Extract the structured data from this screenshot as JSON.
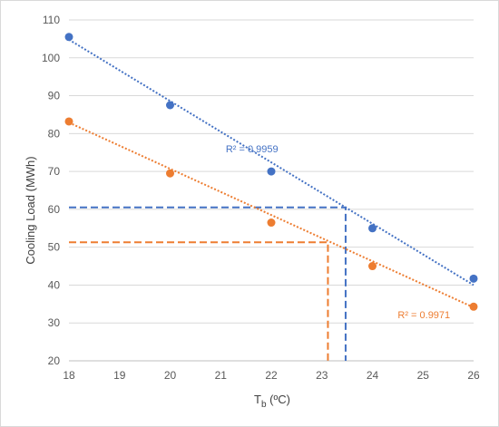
{
  "chart_data": {
    "type": "scatter",
    "title": "",
    "xlabel": "T",
    "xlabel_sub": "b",
    "xlabel_unit": " (ºC)",
    "ylabel": "Cooling Load (MWh)",
    "xlim": [
      18,
      26
    ],
    "ylim": [
      20,
      110
    ],
    "x_ticks": [
      18,
      19,
      20,
      21,
      22,
      23,
      24,
      25,
      26
    ],
    "y_ticks": [
      20,
      30,
      40,
      50,
      60,
      70,
      80,
      90,
      100,
      110
    ],
    "grid": "horizontal",
    "legend": "none",
    "series": [
      {
        "color": "#4472C4",
        "x": [
          18,
          20,
          22,
          24,
          26
        ],
        "y": [
          105.5,
          87.5,
          70,
          55,
          41.7
        ],
        "trendline": {
          "x": [
            18,
            26
          ],
          "y": [
            104.8,
            40.0
          ],
          "style": "dotted"
        },
        "r2_label": "R² = 0.9959",
        "reference_lines": {
          "y": 60.5,
          "x": 23.47,
          "style": "dashed"
        }
      },
      {
        "color": "#ED7D31",
        "x": [
          18,
          20,
          22,
          24,
          26
        ],
        "y": [
          83.2,
          69.5,
          56.5,
          45,
          34.3
        ],
        "trendline": {
          "x": [
            18,
            26
          ],
          "y": [
            82.9,
            34.1
          ],
          "style": "dotted"
        },
        "r2_label": "R² = 0.9971",
        "reference_lines": {
          "y": 51.3,
          "x": 23.12,
          "style": "dashed"
        }
      }
    ]
  }
}
